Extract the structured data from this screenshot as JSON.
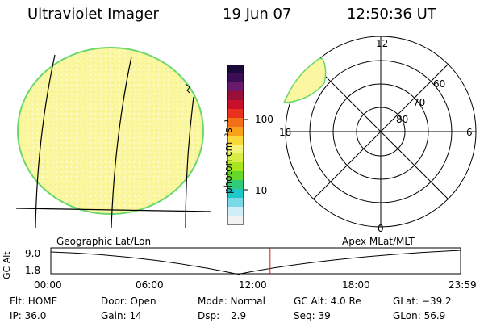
{
  "header": {
    "title": "Ultraviolet Imager",
    "date": "19 Jun 07",
    "time": "12:50:36 UT"
  },
  "colorbar": {
    "label": "photon cm⁻²s⁻¹",
    "scale": "log",
    "ticks": [
      "100",
      "10"
    ],
    "colors": [
      "#1a0a3a",
      "#3a0d55",
      "#6a1a6a",
      "#9a0f3a",
      "#c8102a",
      "#e8321e",
      "#f36f18",
      "#f8a01a",
      "#fad838",
      "#f4f27a",
      "#d8ee44",
      "#a8e61e",
      "#66d82a",
      "#2ecc78",
      "#1ec8c8",
      "#7ad8e8",
      "#cfeef5",
      "#f2f2f2"
    ]
  },
  "left_panel": {
    "caption": "Geographic Lat/Lon",
    "fill_color": "#fbf7a0",
    "edge_color": "#6ad86a"
  },
  "polar_panel": {
    "caption": "Apex MLat/MLT",
    "mlt_labels": [
      "12",
      "6",
      "0",
      "18"
    ],
    "mlat_labels": [
      "60",
      "70",
      "80"
    ]
  },
  "timeline": {
    "y_label": "GC Alt",
    "y_ticks": [
      "9.0",
      "1.8"
    ],
    "x_ticks": [
      "00:00",
      "06:00",
      "12:00",
      "18:00",
      "23:59"
    ],
    "current_time_hours": 12.84,
    "marker_color": "#d02020"
  },
  "status": {
    "flt": "Flt: HOME",
    "door": "Door: Open",
    "mode": "Mode: Normal",
    "gc_alt": "GC Alt: 4.0 Re",
    "glat": "GLat: −39.2",
    "ip": "IP: 36.0",
    "gain": "Gain: 14",
    "dsp_label": "Dsp:",
    "dsp_value": "2.9",
    "seq": "Seq: 39",
    "glon": "GLon:  56.9"
  }
}
